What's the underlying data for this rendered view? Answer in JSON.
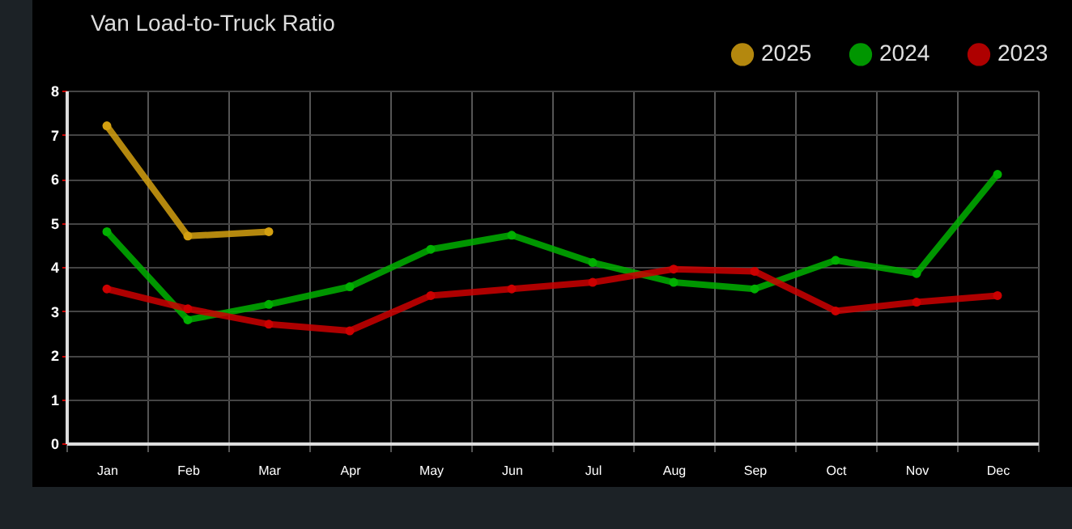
{
  "chart_data": {
    "type": "line",
    "title": "Van Load-to-Truck Ratio",
    "categories": [
      "Jan",
      "Feb",
      "Mar",
      "Apr",
      "May",
      "Jun",
      "Jul",
      "Aug",
      "Sep",
      "Oct",
      "Nov",
      "Dec"
    ],
    "series": [
      {
        "name": "2025",
        "color": "#d4a010",
        "values": [
          7.2,
          4.7,
          4.8,
          null,
          null,
          null,
          null,
          null,
          null,
          null,
          null,
          null
        ]
      },
      {
        "name": "2024",
        "color": "#00b000",
        "values": [
          4.8,
          2.8,
          3.15,
          3.55,
          4.4,
          4.72,
          4.1,
          3.65,
          3.5,
          4.15,
          3.85,
          6.1
        ]
      },
      {
        "name": "2023",
        "color": "#cc0000",
        "values": [
          3.5,
          3.05,
          2.7,
          2.55,
          3.35,
          3.5,
          3.65,
          3.95,
          3.9,
          3.0,
          3.2,
          3.35
        ]
      }
    ],
    "ylim": [
      0,
      8
    ],
    "yticks": [
      0,
      1,
      2,
      3,
      4,
      5,
      6,
      7,
      8
    ],
    "grid": true,
    "legend": "top right",
    "marker": "circle",
    "line_style": "solid"
  }
}
